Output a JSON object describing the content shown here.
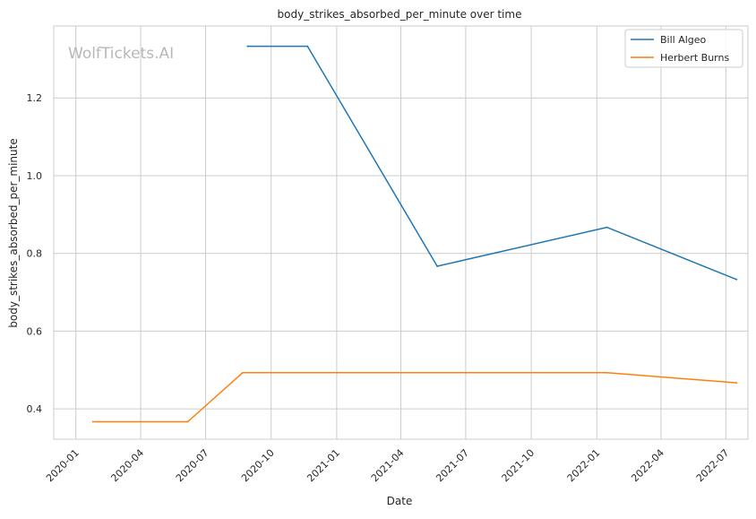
{
  "chart_data": {
    "type": "line",
    "title": "body_strikes_absorbed_per_minute over time",
    "xlabel": "Date",
    "ylabel": "body_strikes_absorbed_per_minute",
    "watermark": "WolfTickets.AI",
    "grid": true,
    "legend_position": "top-right",
    "xlim": [
      "2019-12-01",
      "2022-08-01"
    ],
    "ylim": [
      0.322,
      1.385
    ],
    "x_ticks": [
      "2020-01",
      "2020-04",
      "2020-07",
      "2020-10",
      "2021-01",
      "2021-04",
      "2021-07",
      "2021-10",
      "2022-01",
      "2022-04",
      "2022-07"
    ],
    "y_ticks": [
      "0.4",
      "0.6",
      "0.8",
      "1.0",
      "1.2"
    ],
    "series": [
      {
        "name": "Bill Algeo",
        "color": "#1f77b4",
        "x": [
          "2020-08-29",
          "2020-11-21",
          "2021-05-22",
          "2022-01-15",
          "2022-07-16"
        ],
        "y": [
          1.333,
          1.333,
          0.767,
          0.867,
          0.733
        ]
      },
      {
        "name": "Herbert Burns",
        "color": "#ff7f0e",
        "x": [
          "2020-01-25",
          "2020-06-06",
          "2020-08-22",
          "2022-01-15",
          "2022-07-16"
        ],
        "y": [
          0.367,
          0.367,
          0.493,
          0.493,
          0.467
        ]
      }
    ]
  }
}
